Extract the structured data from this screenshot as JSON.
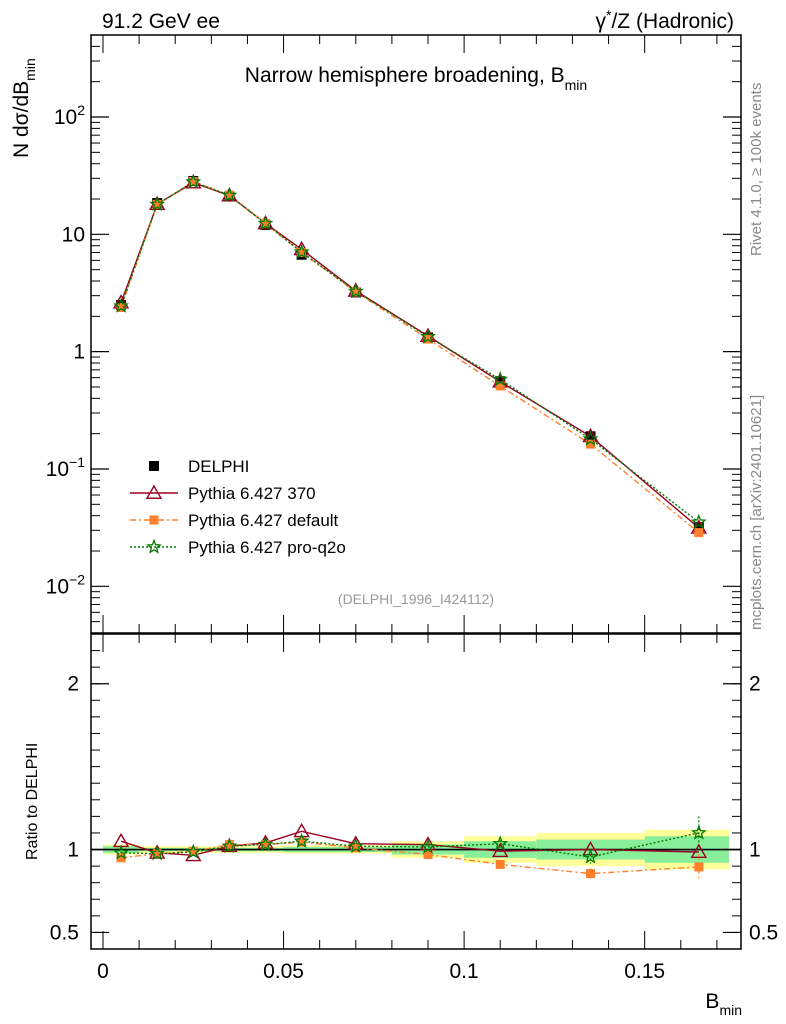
{
  "header": {
    "left_label": "91.2 GeV ee",
    "right_label_base": "γ",
    "right_label_sup": "*",
    "right_label_rest": "/Z (Hadronic)"
  },
  "side_text": {
    "rivet": "Rivet 4.1.0, ≥ 100k events",
    "mcplots": "mcplots.cern.ch [arXiv:2401.10621]"
  },
  "chart_data": {
    "type": "line",
    "title_main": "Narrow hemisphere broadening, B",
    "title_sub": "min",
    "analysis_tag": "(DELPHI_1996_I424112)",
    "xlabel": "B",
    "xlabel_sub": "min",
    "ylabel_main": "N  dσ/dB",
    "ylabel_sub": "min",
    "ratio_ylabel": "Ratio to DELPHI",
    "x_range": [
      0,
      0.18
    ],
    "y_range_log": [
      0.004,
      500
    ],
    "ratio_range": [
      0.4,
      2.3
    ],
    "x_ticks": [
      {
        "v": 0,
        "label": "0"
      },
      {
        "v": 0.05,
        "label": "0.05"
      },
      {
        "v": 0.1,
        "label": "0.1"
      },
      {
        "v": 0.15,
        "label": "0.15"
      }
    ],
    "y_ticks": [
      {
        "v": 0.01,
        "base": "10",
        "exp": "−2"
      },
      {
        "v": 0.1,
        "base": "10",
        "exp": "−1"
      },
      {
        "v": 1,
        "base": "1",
        "exp": ""
      },
      {
        "v": 10,
        "base": "10",
        "exp": ""
      },
      {
        "v": 100,
        "base": "10",
        "exp": "2"
      }
    ],
    "ratio_ticks": [
      {
        "v": 0.5,
        "label": "0.5"
      },
      {
        "v": 1,
        "label": "1"
      },
      {
        "v": 2,
        "label": "2"
      }
    ],
    "x": [
      0.005,
      0.015,
      0.025,
      0.035,
      0.045,
      0.055,
      0.07,
      0.09,
      0.11,
      0.135,
      0.165
    ],
    "bin_edges": [
      0,
      0.01,
      0.02,
      0.03,
      0.04,
      0.05,
      0.06,
      0.08,
      0.1,
      0.12,
      0.15,
      0.18
    ],
    "reference": {
      "name": "DELPHI",
      "values": [
        2.5,
        18.5,
        28.5,
        21.0,
        12.0,
        6.7,
        3.2,
        1.32,
        0.56,
        0.19,
        0.032
      ],
      "band_inner": [
        0.02,
        0.01,
        0.01,
        0.01,
        0.01,
        0.015,
        0.015,
        0.03,
        0.05,
        0.06,
        0.08
      ],
      "band_outer": [
        0.03,
        0.02,
        0.02,
        0.02,
        0.02,
        0.025,
        0.025,
        0.05,
        0.08,
        0.1,
        0.12
      ]
    },
    "series": [
      {
        "name": "Pythia 6.427 370",
        "color": "#9a0020",
        "marker": "open-triangle",
        "dash": "",
        "values": [
          2.62,
          18.1,
          27.6,
          21.4,
          12.4,
          7.46,
          3.3,
          1.36,
          0.555,
          0.19,
          0.0315
        ],
        "ratio": [
          1.05,
          0.98,
          0.965,
          1.02,
          1.04,
          1.11,
          1.035,
          1.03,
          0.99,
          1.0,
          0.985
        ]
      },
      {
        "name": "Pythia 6.427 default",
        "color": "#ff7f2a",
        "marker": "filled-square",
        "dash": "6,3,2,3",
        "values": [
          2.38,
          18.0,
          28.2,
          21.6,
          12.4,
          7.0,
          3.23,
          1.28,
          0.51,
          0.163,
          0.0287
        ],
        "ratio": [
          0.95,
          0.975,
          0.99,
          1.03,
          1.03,
          1.045,
          1.01,
          0.97,
          0.91,
          0.855,
          0.895
        ],
        "ratio_err": [
          0.02,
          0.01,
          0.01,
          0.01,
          0.01,
          0.015,
          0.015,
          0.015,
          0.02,
          0.03,
          0.08
        ]
      },
      {
        "name": "Pythia 6.427 pro-q2o",
        "color": "#007a00",
        "marker": "open-star",
        "dash": "2,2",
        "values": [
          2.45,
          18.0,
          28.0,
          21.5,
          12.35,
          7.05,
          3.26,
          1.34,
          0.58,
          0.18,
          0.0352
        ],
        "ratio": [
          0.98,
          0.975,
          0.985,
          1.02,
          1.03,
          1.05,
          1.02,
          1.015,
          1.035,
          0.955,
          1.1
        ],
        "ratio_err": [
          0.01,
          0.01,
          0.01,
          0.01,
          0.01,
          0.01,
          0.01,
          0.015,
          0.02,
          0.04,
          0.1
        ]
      }
    ],
    "legend_position": "lower-left"
  }
}
